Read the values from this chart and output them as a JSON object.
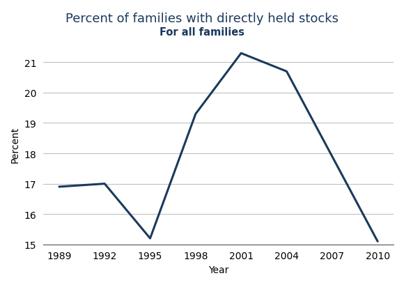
{
  "title": "Percent of families with directly held stocks",
  "subtitle": "For all families",
  "xlabel": "Year",
  "ylabel": "Percent",
  "years": [
    1989,
    1992,
    1995,
    1998,
    2001,
    2004,
    2007,
    2010
  ],
  "values": [
    16.9,
    17.0,
    15.2,
    19.3,
    21.3,
    20.7,
    17.9,
    15.1
  ],
  "line_color": "#1a3a5c",
  "line_width": 2.2,
  "ylim": [
    15,
    21.6
  ],
  "yticks": [
    15,
    16,
    17,
    18,
    19,
    20,
    21
  ],
  "xtick_labels": [
    "1989",
    "1992",
    "1995",
    "1998",
    "2001",
    "2004",
    "2007",
    "2010"
  ],
  "grid_color": "#c0c0c0",
  "background_color": "#ffffff",
  "title_color": "#1a3a5c",
  "subtitle_color": "#1a3a5c",
  "title_fontsize": 13,
  "subtitle_fontsize": 10.5,
  "label_fontsize": 10,
  "tick_fontsize": 10
}
